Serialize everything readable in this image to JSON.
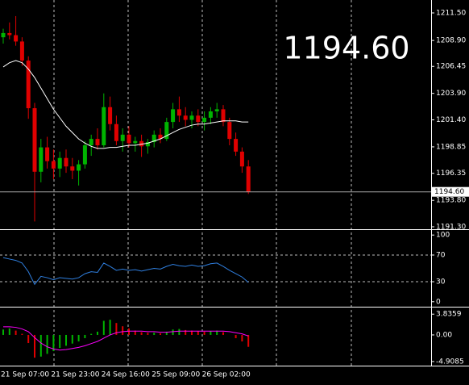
{
  "chart_data": [
    {
      "type": "candlestick",
      "categories": [
        "21 Sep 07:00",
        null,
        null,
        null,
        null,
        null,
        null,
        null,
        "21 Sep 23:00",
        null,
        null,
        null,
        null,
        null,
        null,
        null,
        "24 Sep 16:00",
        null,
        null,
        null,
        null,
        null,
        null,
        null,
        "25 Sep 09:00",
        null,
        null,
        null,
        null,
        null,
        null,
        null,
        "26 Sep 02:00",
        null,
        null,
        null,
        null,
        null,
        null,
        null
      ],
      "open": [
        1209.2,
        1209.6,
        1209.4,
        1208.8,
        1207,
        1202.5,
        1196.5,
        1198.8,
        1197.5,
        1196.8,
        1197.8,
        1197,
        1196.6,
        1197.2,
        1199,
        1199.6,
        1199,
        1202.6,
        1201,
        1199.4,
        1200,
        1199.2,
        1199.4,
        1198.9,
        1199.3,
        1200,
        1199.6,
        1201.2,
        1202.4,
        1201.8,
        1201.4,
        1201.8,
        1201.2,
        1201.6,
        1202.2,
        1202.4,
        1201.2,
        1199.6,
        1198.4,
        1197
      ],
      "high": [
        1210,
        1210.6,
        1211.2,
        1209.2,
        1207.4,
        1203,
        1199.6,
        1199.8,
        1198.6,
        1198.4,
        1198.6,
        1197.8,
        1197.6,
        1199.4,
        1200,
        1200.6,
        1203.9,
        1203.6,
        1201.8,
        1200.6,
        1200.8,
        1199.8,
        1200,
        1199.6,
        1200.4,
        1200.6,
        1201.6,
        1203,
        1203.6,
        1202.6,
        1202.2,
        1202.4,
        1202.2,
        1202.6,
        1203,
        1202.8,
        1201.6,
        1200.2,
        1198.8,
        1197.6
      ],
      "low": [
        1208.6,
        1209,
        1208.4,
        1206.5,
        1201.5,
        1191.8,
        1195.5,
        1196.8,
        1195.8,
        1196,
        1196.4,
        1195.8,
        1195.2,
        1196.8,
        1198,
        1198.6,
        1198.8,
        1200.4,
        1199,
        1198.4,
        1198.8,
        1198.4,
        1197.9,
        1198.2,
        1198.8,
        1199.2,
        1199.4,
        1200.6,
        1201.2,
        1200.8,
        1200.6,
        1200.8,
        1200.4,
        1201,
        1201.6,
        1200.8,
        1199,
        1198,
        1196.4,
        1194.4
      ],
      "close": [
        1209.6,
        1209.4,
        1208.8,
        1207,
        1202.5,
        1196.5,
        1198.8,
        1197.5,
        1196.8,
        1197.8,
        1197,
        1196.6,
        1197.2,
        1199,
        1199.6,
        1199,
        1202.6,
        1201,
        1199.4,
        1200,
        1199.2,
        1199.4,
        1198.9,
        1199.3,
        1200,
        1199.6,
        1201.2,
        1202.4,
        1201.8,
        1201.4,
        1201.8,
        1201.2,
        1201.6,
        1202.2,
        1202.4,
        1201.2,
        1199.6,
        1198.4,
        1197,
        1194.6
      ],
      "up_color": "#00b400",
      "down_color": "#e00000",
      "series": [
        {
          "color": "#ffffff",
          "values": [
            1206.4,
            1206.8,
            1207,
            1206.8,
            1206.2,
            1205.4,
            1204.4,
            1203.4,
            1202.4,
            1201.6,
            1200.8,
            1200.2,
            1199.6,
            1199.2,
            1198.9,
            1198.7,
            1198.7,
            1198.8,
            1198.8,
            1198.9,
            1199,
            1199,
            1199.1,
            1199.2,
            1199.4,
            1199.6,
            1199.9,
            1200.2,
            1200.5,
            1200.7,
            1200.9,
            1201,
            1201,
            1201.1,
            1201.2,
            1201.3,
            1201.3,
            1201.3,
            1201.2,
            1201.2
          ]
        }
      ],
      "ylim": [
        1191.07,
        1212.72
      ],
      "yticks": [
        {
          "value": 1211.5,
          "label": "1211.50"
        },
        {
          "value": 1208.9,
          "label": "1208.90"
        },
        {
          "value": 1206.45,
          "label": "1206.45"
        },
        {
          "value": 1203.9,
          "label": "1203.90"
        },
        {
          "value": 1201.4,
          "label": "1201.40"
        },
        {
          "value": 1198.85,
          "label": "1198.85"
        },
        {
          "value": 1196.35,
          "label": "1196.35"
        },
        {
          "value": 1193.8,
          "label": "1193.80"
        },
        {
          "value": 1191.3,
          "label": "1191.30"
        }
      ],
      "last_price": {
        "value": 1194.6,
        "label": "1194.60"
      }
    },
    {
      "type": "line",
      "series": [
        {
          "color": "#2f7fe0",
          "values": [
            66,
            64,
            62,
            58,
            45,
            26,
            38,
            36,
            33,
            36,
            35,
            34,
            36,
            42,
            45,
            44,
            58,
            53,
            47,
            49,
            47,
            48,
            46,
            48,
            50,
            49,
            53,
            56,
            54,
            53,
            55,
            53,
            54,
            57,
            58,
            53,
            47,
            42,
            37,
            29
          ]
        }
      ],
      "ylim": [
        -7.5,
        107.5
      ],
      "yticks": [
        100,
        70,
        30,
        0
      ],
      "level_lines": [
        70,
        30
      ]
    },
    {
      "type": "bar",
      "values": [
        1.0,
        1.2,
        0.8,
        0.2,
        -1.5,
        -4.2,
        -4.0,
        -3.5,
        -3.0,
        -2.4,
        -2.0,
        -1.6,
        -1.2,
        -0.6,
        0.2,
        0.6,
        2.6,
        2.8,
        2.2,
        1.6,
        1.2,
        0.8,
        0.5,
        0.4,
        0.4,
        0.3,
        0.6,
        1.0,
        1.1,
        0.9,
        0.8,
        0.7,
        0.6,
        0.7,
        0.8,
        0.5,
        0.0,
        -0.6,
        -1.2,
        -2.2
      ],
      "up_color": "#00b400",
      "down_color": "#e00000",
      "series": [
        {
          "color": "#ff00ff",
          "values": [
            1.5,
            1.5,
            1.4,
            1.1,
            0.6,
            -0.5,
            -1.5,
            -2.2,
            -2.6,
            -2.8,
            -2.7,
            -2.5,
            -2.3,
            -2.0,
            -1.6,
            -1.2,
            -0.6,
            0,
            0.4,
            0.6,
            0.7,
            0.7,
            0.7,
            0.6,
            0.6,
            0.5,
            0.5,
            0.6,
            0.7,
            0.7,
            0.7,
            0.7,
            0.7,
            0.7,
            0.7,
            0.7,
            0.6,
            0.4,
            0.2,
            -0.2
          ]
        }
      ],
      "ylim": [
        -5.67,
        5.06
      ],
      "yticks": [
        3.8359,
        {
          "value": 0,
          "label": "0.00"
        },
        -4.9085
      ]
    }
  ]
}
